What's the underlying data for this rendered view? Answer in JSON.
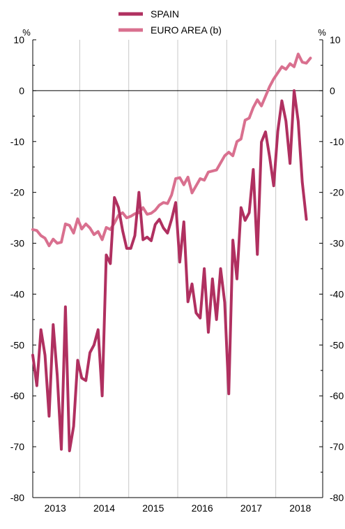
{
  "chart_data": {
    "type": "line",
    "title": "",
    "unit_left": "%",
    "unit_right": "%",
    "ylim": [
      -80,
      10
    ],
    "yticks": [
      10,
      0,
      -10,
      -20,
      -30,
      -40,
      -50,
      -60,
      -70,
      -80
    ],
    "year_labels": [
      "2013",
      "2014",
      "2015",
      "2016",
      "2017",
      "2018"
    ],
    "x_start_month": 0,
    "x_end_month": 71,
    "grid": "vertical year separators",
    "legend_position": "top-center",
    "series": [
      {
        "name": "SPAIN",
        "color": "#b03060",
        "values": [
          -52,
          -58,
          -47,
          -52,
          -64,
          -46,
          -56,
          -70.5,
          -42.5,
          -70.8,
          -66,
          -53,
          -56.5,
          -57,
          -51.5,
          -50,
          -47,
          -60,
          -32.3,
          -34,
          -21,
          -23,
          -27.5,
          -31,
          -31,
          -28.5,
          -20,
          -29.3,
          -28.8,
          -29.5,
          -26.3,
          -25.3,
          -27,
          -28,
          -25.3,
          -22,
          -33.7,
          -25.8,
          -41.5,
          -38,
          -43.7,
          -44.7,
          -35,
          -47.5,
          -37,
          -45,
          -35,
          -41.6,
          -59.6,
          -29.4,
          -37,
          -23,
          -25.5,
          -24,
          -15.5,
          -32.2,
          -10.1,
          -8.1,
          -13,
          -18.7,
          -8,
          -2,
          -6,
          -14.3,
          0,
          -6,
          -18,
          -25.3
        ]
      },
      {
        "name": "EURO AREA (b)",
        "color": "#d9708f",
        "values": [
          -27.3,
          -27.5,
          -28.5,
          -29,
          -30.5,
          -29.2,
          -30,
          -29.8,
          -26.2,
          -26.5,
          -28,
          -25.2,
          -27.2,
          -26.2,
          -27,
          -28.3,
          -27.7,
          -29.3,
          -26.9,
          -27.3,
          -26,
          -24.5,
          -24,
          -25,
          -24.7,
          -24.2,
          -24,
          -23,
          -24.3,
          -24.1,
          -23.5,
          -22.5,
          -22,
          -22.2,
          -20.5,
          -17.3,
          -17.1,
          -18.5,
          -17,
          -20.1,
          -18.7,
          -17.3,
          -17.6,
          -16,
          -15.8,
          -15.6,
          -14.2,
          -12.8,
          -12.1,
          -12.8,
          -10,
          -9.5,
          -5.8,
          -5.4,
          -3.3,
          -1.8,
          -3,
          -1.1,
          0.8,
          2.3,
          3.5,
          4.7,
          4.2,
          5.3,
          4.7,
          7.2,
          5.6,
          5.4,
          6.4
        ]
      }
    ]
  }
}
